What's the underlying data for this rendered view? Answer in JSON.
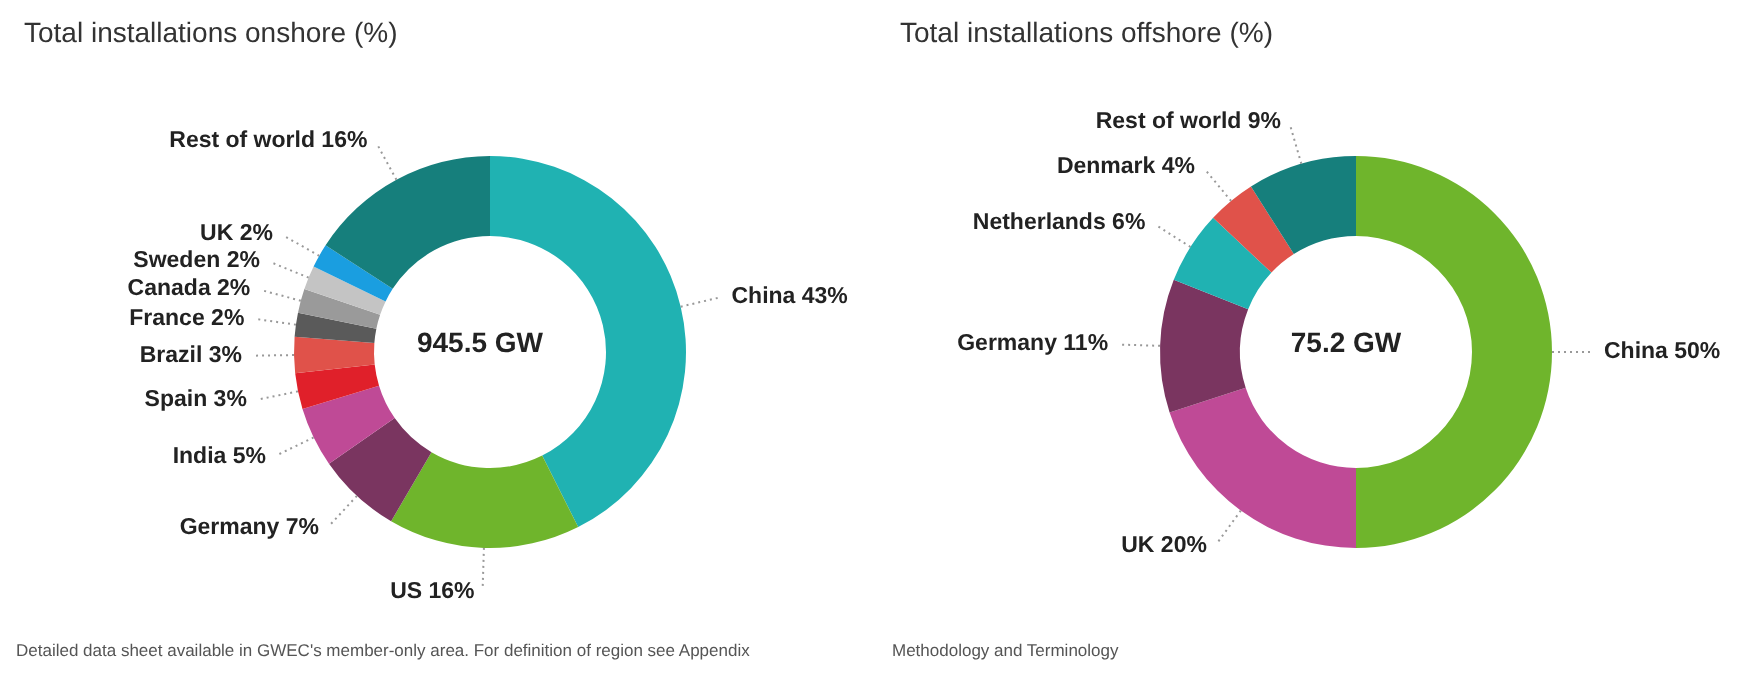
{
  "chart_data": [
    {
      "type": "donut",
      "title": "Total installations onshore (%)",
      "categories": [
        "China",
        "US",
        "Germany",
        "India",
        "Spain",
        "Brazil",
        "France",
        "Canada",
        "Sweden",
        "UK",
        "Rest of world"
      ],
      "values": [
        43,
        16,
        7,
        5,
        3,
        3,
        2,
        2,
        2,
        2,
        16
      ],
      "value_labels": [
        "43%",
        "16%",
        "7%",
        "5%",
        "3%",
        "3%",
        "2%",
        "2%",
        "2%",
        "2%",
        "16%"
      ],
      "colors": [
        "#20b2b2",
        "#6fb52c",
        "#7a3560",
        "#bf4a96",
        "#e0202a",
        "#e0524a",
        "#5a5a5a",
        "#9a9a9a",
        "#c4c4c4",
        "#1a9ee0",
        "#167f7c"
      ],
      "annotations": [
        "945.5 GW",
        "Detailed data sheet available in GWEC's member-only area. For definition of region see Appendix"
      ]
    },
    {
      "type": "donut",
      "title": "Total installations offshore (%)",
      "categories": [
        "China",
        "UK",
        "Germany",
        "Netherlands",
        "Denmark",
        "Rest of world"
      ],
      "values": [
        50,
        20,
        11,
        6,
        4,
        9
      ],
      "value_labels": [
        "50%",
        "20%",
        "11%",
        "6%",
        "4%",
        "9%"
      ],
      "colors": [
        "#6fb52c",
        "#bf4a96",
        "#7a3560",
        "#20b2b2",
        "#e0524a",
        "#167f7c"
      ],
      "annotations": [
        "75.2 GW",
        "Methodology and Terminology"
      ]
    }
  ]
}
